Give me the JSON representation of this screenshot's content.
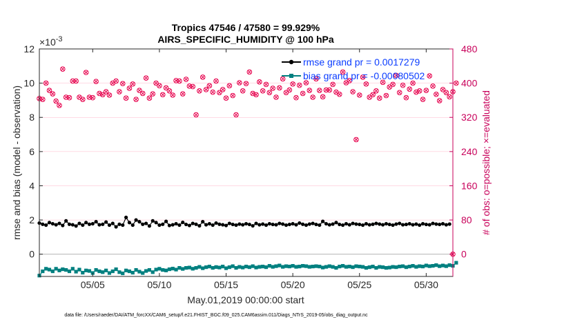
{
  "chart_data": {
    "type": "line",
    "title_line1": "Tropics 47546 / 47580 = 99.929%",
    "title_line2": "AIRS_SPECIFIC_HUMIDITY @ 100 hPa",
    "xlabel": "May.01,2019 00:00:00 start",
    "ylabel_left": "rmse and bias (model - observation)",
    "ylabel_right": "# of obs: o=possible; ×=evaluated",
    "exponent_label": "×10",
    "exponent_value": "-3",
    "footer": "data file: /Users/raeder/DAI/ATM_forcXX/CAM6_setup/f.e21.FHIST_BGC.f09_025.CAM6assim.011/Diags_NTrS_2019-05/obs_diag_output.nc",
    "x_range": [
      1,
      32
    ],
    "x_ticks": [
      5,
      10,
      15,
      20,
      25,
      30
    ],
    "x_tick_labels": [
      "05/05",
      "05/10",
      "05/15",
      "05/20",
      "05/25",
      "05/30"
    ],
    "y_left_range": [
      -1.3,
      12
    ],
    "y_left_ticks": [
      0,
      2,
      4,
      6,
      8,
      10,
      12
    ],
    "y_left_tick_labels": [
      "0",
      "2",
      "4",
      "6",
      "8",
      "10",
      "12"
    ],
    "y_right_range": [
      -52,
      480
    ],
    "y_right_ticks": [
      0,
      80,
      160,
      240,
      320,
      400,
      480
    ],
    "y_right_tick_labels": [
      "0",
      "80",
      "160",
      "240",
      "320",
      "400",
      "480"
    ],
    "colors": {
      "rmse": "#000000",
      "bias": "#008080",
      "obs": "#e6004c",
      "legend_text": "#0a3cff",
      "right_axis": "#c8005a",
      "zero_line": "#b4b4b4",
      "grid": "#ffb4c8"
    },
    "series": [
      {
        "name": "rmse",
        "legend": "rmse grand pr = 0.0017279",
        "unit_scale": "x1e-3",
        "x_start": 1.0,
        "dx": 0.25,
        "values": [
          1.82,
          1.75,
          1.7,
          1.85,
          1.78,
          1.72,
          1.8,
          1.68,
          1.95,
          1.75,
          1.72,
          1.65,
          1.8,
          1.7,
          1.85,
          1.75,
          1.78,
          1.9,
          1.72,
          1.75,
          1.88,
          1.7,
          1.8,
          1.6,
          1.75,
          1.7,
          2.15,
          1.85,
          1.7,
          2.0,
          1.9,
          1.75,
          1.8,
          1.65,
          1.95,
          1.85,
          1.7,
          1.75,
          1.92,
          1.68,
          1.72,
          1.78,
          1.7,
          1.86,
          1.74,
          1.68,
          1.8,
          1.75,
          1.66,
          1.9,
          1.72,
          1.78,
          1.7,
          1.82,
          1.75,
          1.72,
          1.68,
          1.8,
          1.74,
          1.7,
          1.76,
          1.72,
          1.78,
          1.74,
          1.66,
          1.8,
          1.72,
          1.76,
          1.7,
          1.78,
          1.74,
          1.72,
          1.8,
          1.76,
          1.7,
          1.74,
          1.78,
          1.72,
          1.82,
          1.75,
          1.7,
          1.76,
          1.8,
          1.74,
          1.7,
          1.92,
          1.78,
          1.72,
          1.76,
          1.85,
          1.74,
          1.7,
          1.78,
          1.72,
          1.8,
          1.76,
          1.74,
          1.7,
          1.78,
          1.72,
          1.75,
          1.8,
          1.76,
          1.72,
          1.78,
          1.74,
          1.7,
          1.76,
          1.8,
          1.72,
          1.74,
          1.78,
          1.72,
          1.76,
          1.7,
          1.78,
          1.74,
          1.72,
          1.8,
          1.76,
          1.74,
          1.78,
          1.72,
          1.76
        ]
      },
      {
        "name": "bias",
        "legend": "bias grand pr = -0.00080502",
        "unit_scale": "x1e-3",
        "x_start": 1.0,
        "dx": 0.25,
        "values": [
          -1.25,
          -1.0,
          -0.85,
          -0.9,
          -1.0,
          -0.85,
          -0.95,
          -0.88,
          -0.92,
          -1.0,
          -0.85,
          -1.02,
          -0.9,
          -1.08,
          -0.95,
          -0.98,
          -1.1,
          -0.92,
          -1.0,
          -1.05,
          -0.95,
          -1.1,
          -1.0,
          -0.88,
          -1.05,
          -1.12,
          -0.95,
          -1.0,
          -1.08,
          -0.92,
          -1.02,
          -1.1,
          -0.98,
          -0.92,
          -1.05,
          -0.9,
          -0.85,
          -0.92,
          -0.95,
          -0.88,
          -0.84,
          -0.9,
          -0.8,
          -0.86,
          -0.8,
          -0.78,
          -0.85,
          -0.8,
          -0.74,
          -0.82,
          -0.76,
          -0.72,
          -0.8,
          -0.75,
          -0.78,
          -0.72,
          -0.82,
          -0.76,
          -0.7,
          -0.8,
          -0.74,
          -0.78,
          -0.72,
          -0.76,
          -0.7,
          -0.78,
          -0.74,
          -0.72,
          -0.76,
          -0.68,
          -0.74,
          -0.7,
          -0.66,
          -0.74,
          -0.7,
          -0.72,
          -0.68,
          -0.74,
          -0.72,
          -0.68,
          -0.7,
          -0.74,
          -0.72,
          -0.7,
          -0.72,
          -0.78,
          -0.74,
          -0.7,
          -0.74,
          -0.8,
          -0.72,
          -0.68,
          -0.74,
          -0.72,
          -0.76,
          -0.7,
          -0.72,
          -0.74,
          -0.8,
          -0.76,
          -0.72,
          -0.8,
          -0.74,
          -0.76,
          -0.8,
          -0.78,
          -0.74,
          -0.76,
          -0.72,
          -0.7,
          -0.76,
          -0.72,
          -0.68,
          -0.74,
          -0.7,
          -0.72,
          -0.66,
          -0.7,
          -0.68,
          -0.64,
          -0.7,
          -0.66,
          -0.7,
          -0.64,
          -0.68,
          -0.5
        ]
      },
      {
        "name": "obs_count",
        "axis": "right",
        "x_start": 1.0,
        "dx": 0.25,
        "values": [
          364,
          362,
          400,
          383,
          375,
          358,
          348,
          433,
          367,
          366,
          405,
          405,
          367,
          362,
          425,
          367,
          366,
          404,
          376,
          373,
          380,
          372,
          400,
          405,
          380,
          399,
          365,
          388,
          398,
          362,
          383,
          376,
          412,
          365,
          375,
          400,
          394,
          373,
          389,
          382,
          372,
          406,
          405,
          375,
          409,
          393,
          392,
          326,
          382,
          414,
          385,
          394,
          379,
          405,
          378,
          385,
          365,
          394,
          371,
          326,
          401,
          382,
          399,
          426,
          376,
          373,
          403,
          382,
          397,
          378,
          388,
          367,
          389,
          410,
          378,
          384,
          398,
          366,
          395,
          376,
          401,
          383,
          367,
          410,
          383,
          368,
          384,
          384,
          397,
          379,
          374,
          426,
          401,
          406,
          380,
          268,
          372,
          414,
          398,
          367,
          373,
          382,
          365,
          402,
          371,
          391,
          397,
          418,
          378,
          395,
          366,
          386,
          400,
          379,
          382,
          362,
          383,
          417,
          393,
          374,
          359,
          385,
          378,
          368,
          380,
          400
        ]
      }
    ],
    "extra_points": [
      {
        "x": 32.0,
        "value_right": 0
      }
    ]
  }
}
